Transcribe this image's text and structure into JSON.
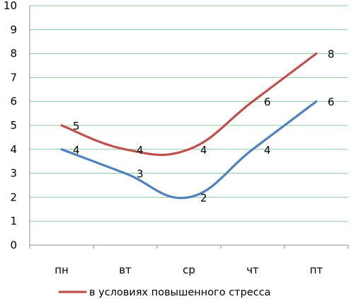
{
  "chart_data": {
    "type": "line",
    "title": "",
    "xlabel": "",
    "ylabel": "",
    "categories": [
      "пн",
      "вт",
      "ср",
      "чт",
      "пт"
    ],
    "ylim": [
      0,
      10
    ],
    "yticks": [
      0,
      1,
      2,
      3,
      4,
      5,
      6,
      7,
      8,
      9,
      10
    ],
    "grid": true,
    "smooth": true,
    "legend_position": "bottom",
    "series": [
      {
        "name": "в условиях повышенного стресса",
        "values": [
          5,
          4,
          4,
          6,
          8
        ],
        "labels": [
          "5",
          "4",
          "4",
          "6",
          "8"
        ],
        "color": "#C0504D",
        "in_legend": true
      },
      {
        "name": "",
        "values": [
          4,
          3,
          2,
          4,
          6
        ],
        "labels": [
          "4",
          "3",
          "2",
          "4",
          "6"
        ],
        "color": "#4F81BD",
        "in_legend": false
      }
    ],
    "colors": {
      "grid": "#8EC9A0",
      "axis": "#8E8E8E"
    }
  }
}
